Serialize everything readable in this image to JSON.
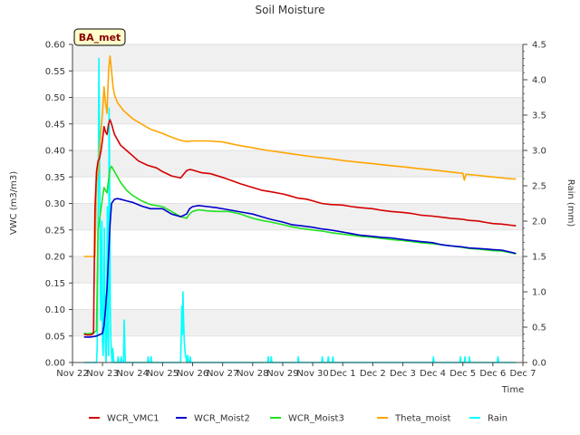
{
  "chart_data": {
    "type": "line",
    "title": "Soil Moisture",
    "badge": "BA_met",
    "xlabel": "Time",
    "ylabel": "VWC (m3/m3)",
    "ylabel_right": "Rain (mm)",
    "xlim": [
      0,
      15
    ],
    "ylim": [
      0,
      0.6
    ],
    "ylim_right": [
      0,
      4.5
    ],
    "x_tick_values": [
      0,
      1,
      2,
      3,
      4,
      5,
      6,
      7,
      8,
      9,
      10,
      11,
      12,
      13,
      14,
      15
    ],
    "x_tick_labels": [
      "Nov 22",
      "Nov 23",
      "Nov 24",
      "Nov 25",
      "Nov 26",
      "Nov 27",
      "Nov 28",
      "Nov 29",
      "Nov 30",
      "Dec 1",
      "Dec 2",
      "Dec 3",
      "Dec 4",
      "Dec 5",
      "Dec 6",
      "Dec 7"
    ],
    "y_ticks": [
      0.0,
      0.05,
      0.1,
      0.15,
      0.2,
      0.25,
      0.3,
      0.35,
      0.4,
      0.45,
      0.5,
      0.55,
      0.6
    ],
    "y_tick_labels": [
      "0.00",
      "0.05",
      "0.10",
      "0.15",
      "0.20",
      "0.25",
      "0.30",
      "0.35",
      "0.40",
      "0.45",
      "0.50",
      "0.55",
      "0.60"
    ],
    "y_ticks_right": [
      0.0,
      0.5,
      1.0,
      1.5,
      2.0,
      2.5,
      3.0,
      3.5,
      4.0,
      4.5
    ],
    "y_tick_labels_right": [
      "0.0",
      "0.5",
      "1.0",
      "1.5",
      "2.0",
      "2.5",
      "3.0",
      "3.5",
      "4.0",
      "4.5"
    ],
    "grid": "horizontal bands",
    "legend_position": "bottom",
    "series": [
      {
        "name": "WCR_VMC1",
        "color": "#d40000",
        "axis": "left",
        "x": [
          0.4,
          0.5,
          0.6,
          0.65,
          0.7,
          0.75,
          0.8,
          0.85,
          0.9,
          0.95,
          1.0,
          1.05,
          1.1,
          1.15,
          1.2,
          1.25,
          1.3,
          1.35,
          1.4,
          1.5,
          1.6,
          1.8,
          2.0,
          2.2,
          2.5,
          2.8,
          3.0,
          3.3,
          3.6,
          3.8,
          3.9,
          4.0,
          4.3,
          4.6,
          5.0,
          5.3,
          5.6,
          6.0,
          6.3,
          6.6,
          7.0,
          7.2,
          7.5,
          7.8,
          8.0,
          8.3,
          8.6,
          9.0,
          9.3,
          9.6,
          10.0,
          10.3,
          10.6,
          11.0,
          11.3,
          11.6,
          12.0,
          12.3,
          12.6,
          13.0,
          13.2,
          13.5,
          13.8,
          14.0,
          14.3,
          14.6,
          14.75
        ],
        "y": [
          0.053,
          0.052,
          0.052,
          0.053,
          0.055,
          0.29,
          0.36,
          0.38,
          0.385,
          0.4,
          0.42,
          0.445,
          0.435,
          0.43,
          0.45,
          0.458,
          0.45,
          0.44,
          0.43,
          0.42,
          0.41,
          0.4,
          0.39,
          0.38,
          0.372,
          0.367,
          0.36,
          0.352,
          0.348,
          0.362,
          0.364,
          0.363,
          0.358,
          0.356,
          0.349,
          0.343,
          0.337,
          0.33,
          0.325,
          0.322,
          0.318,
          0.315,
          0.31,
          0.308,
          0.305,
          0.3,
          0.298,
          0.297,
          0.294,
          0.292,
          0.29,
          0.287,
          0.285,
          0.283,
          0.281,
          0.278,
          0.276,
          0.274,
          0.272,
          0.27,
          0.268,
          0.267,
          0.264,
          0.262,
          0.261,
          0.259,
          0.258
        ]
      },
      {
        "name": "WCR_Moist2",
        "color": "#0000cc",
        "axis": "left",
        "x": [
          0.4,
          0.6,
          0.8,
          1.0,
          1.05,
          1.1,
          1.15,
          1.2,
          1.25,
          1.3,
          1.4,
          1.5,
          1.6,
          1.8,
          2.0,
          2.3,
          2.6,
          3.0,
          3.3,
          3.6,
          3.8,
          3.9,
          4.0,
          4.2,
          4.5,
          4.8,
          5.2,
          5.6,
          6.0,
          6.3,
          6.6,
          7.0,
          7.3,
          7.6,
          8.0,
          8.3,
          8.6,
          9.0,
          9.3,
          9.6,
          10.0,
          10.3,
          10.6,
          11.0,
          11.3,
          11.6,
          12.0,
          12.3,
          12.6,
          13.0,
          13.2,
          13.5,
          13.8,
          14.0,
          14.3,
          14.6,
          14.75
        ],
        "y": [
          0.048,
          0.048,
          0.05,
          0.055,
          0.07,
          0.1,
          0.14,
          0.2,
          0.26,
          0.3,
          0.308,
          0.309,
          0.308,
          0.305,
          0.302,
          0.295,
          0.29,
          0.29,
          0.28,
          0.275,
          0.28,
          0.29,
          0.294,
          0.296,
          0.294,
          0.292,
          0.288,
          0.284,
          0.28,
          0.275,
          0.27,
          0.265,
          0.26,
          0.258,
          0.255,
          0.252,
          0.25,
          0.246,
          0.243,
          0.24,
          0.238,
          0.236,
          0.235,
          0.232,
          0.23,
          0.228,
          0.226,
          0.222,
          0.22,
          0.218,
          0.216,
          0.215,
          0.214,
          0.213,
          0.212,
          0.208,
          0.206
        ]
      },
      {
        "name": "WCR_Moist3",
        "color": "#1ee31e",
        "axis": "left",
        "x": [
          0.4,
          0.5,
          0.6,
          0.7,
          0.8,
          0.85,
          0.9,
          0.95,
          1.0,
          1.05,
          1.1,
          1.15,
          1.2,
          1.25,
          1.3,
          1.4,
          1.5,
          1.6,
          1.8,
          2.0,
          2.3,
          2.6,
          3.0,
          3.3,
          3.6,
          3.8,
          3.9,
          4.0,
          4.2,
          4.5,
          4.8,
          5.2,
          5.6,
          6.0,
          6.3,
          6.6,
          7.0,
          7.3,
          7.6,
          8.0,
          8.3,
          8.6,
          9.0,
          9.3,
          9.6,
          10.0,
          10.3,
          10.6,
          11.0,
          11.3,
          11.6,
          12.0,
          12.3,
          12.6,
          13.0,
          13.2,
          13.5,
          13.8,
          14.0,
          14.3,
          14.6,
          14.75
        ],
        "y": [
          0.055,
          0.054,
          0.055,
          0.056,
          0.06,
          0.25,
          0.27,
          0.29,
          0.31,
          0.33,
          0.325,
          0.32,
          0.345,
          0.365,
          0.37,
          0.36,
          0.35,
          0.34,
          0.325,
          0.315,
          0.305,
          0.298,
          0.294,
          0.285,
          0.275,
          0.272,
          0.28,
          0.285,
          0.288,
          0.286,
          0.285,
          0.285,
          0.28,
          0.272,
          0.268,
          0.265,
          0.26,
          0.256,
          0.253,
          0.25,
          0.248,
          0.245,
          0.242,
          0.24,
          0.238,
          0.236,
          0.234,
          0.232,
          0.23,
          0.228,
          0.226,
          0.224,
          0.222,
          0.22,
          0.217,
          0.215,
          0.214,
          0.212,
          0.211,
          0.21,
          0.207,
          0.205
        ]
      },
      {
        "name": "Theta_moist",
        "color": "#ffa500",
        "axis": "left",
        "x": [
          0.4,
          0.6,
          0.75,
          0.8,
          0.85,
          0.9,
          0.95,
          1.0,
          1.05,
          1.1,
          1.15,
          1.2,
          1.25,
          1.3,
          1.35,
          1.4,
          1.5,
          1.7,
          2.0,
          2.3,
          2.6,
          3.0,
          3.3,
          3.6,
          3.8,
          4.0,
          4.5,
          5.0,
          5.5,
          6.0,
          6.5,
          7.0,
          7.5,
          8.0,
          8.5,
          9.0,
          9.5,
          10.0,
          10.5,
          11.0,
          11.5,
          12.0,
          12.5,
          13.0,
          13.05,
          13.1,
          13.5,
          14.0,
          14.5,
          14.75
        ],
        "y": [
          0.2,
          0.2,
          0.2,
          0.34,
          0.36,
          0.4,
          0.44,
          0.47,
          0.52,
          0.49,
          0.47,
          0.55,
          0.578,
          0.55,
          0.52,
          0.505,
          0.49,
          0.475,
          0.46,
          0.45,
          0.44,
          0.432,
          0.425,
          0.419,
          0.417,
          0.418,
          0.418,
          0.416,
          0.41,
          0.405,
          0.4,
          0.396,
          0.392,
          0.388,
          0.385,
          0.381,
          0.378,
          0.375,
          0.372,
          0.369,
          0.366,
          0.363,
          0.36,
          0.357,
          0.344,
          0.355,
          0.353,
          0.35,
          0.347,
          0.346
        ]
      },
      {
        "name": "Rain",
        "color": "#00ffff",
        "axis": "right",
        "x": [
          0.4,
          0.8,
          0.82,
          0.84,
          0.86,
          0.88,
          0.9,
          0.92,
          0.94,
          0.96,
          0.98,
          1.0,
          1.02,
          1.04,
          1.06,
          1.08,
          1.1,
          1.12,
          1.14,
          1.16,
          1.18,
          1.2,
          1.22,
          1.24,
          1.26,
          1.28,
          1.3,
          1.32,
          1.34,
          1.36,
          1.38,
          1.4,
          1.42,
          1.5,
          1.52,
          1.54,
          1.6,
          1.62,
          1.64,
          1.7,
          1.72,
          1.74,
          1.76,
          1.8,
          2.5,
          2.52,
          2.54,
          2.6,
          2.62,
          2.64,
          3.6,
          3.62,
          3.64,
          3.66,
          3.68,
          3.7,
          3.72,
          3.74,
          3.76,
          3.78,
          3.8,
          3.82,
          3.84,
          3.86,
          3.88,
          3.9,
          3.92,
          3.94,
          3.96,
          3.98,
          4.0,
          6.5,
          6.52,
          6.54,
          6.6,
          6.62,
          6.64,
          7.5,
          7.52,
          7.54,
          8.3,
          8.32,
          8.34,
          8.5,
          8.52,
          8.54,
          8.65,
          8.67,
          8.69,
          12.0,
          12.02,
          12.04,
          12.9,
          12.92,
          12.94,
          13.05,
          13.07,
          13.09,
          13.2,
          13.22,
          13.24,
          14.15,
          14.17,
          14.19,
          14.75
        ],
        "y": [
          0,
          0,
          0.2,
          1.0,
          2.7,
          4.3,
          3.0,
          1.8,
          0.6,
          1.2,
          2.0,
          0.3,
          0.1,
          0.5,
          1.9,
          0.8,
          0.2,
          0,
          0.4,
          2.2,
          0.6,
          0.1,
          3.6,
          2.4,
          0.8,
          0.3,
          0.1,
          0,
          0.2,
          0.1,
          0,
          0,
          0,
          0,
          0.08,
          0,
          0,
          0.08,
          0,
          0,
          0.6,
          0.25,
          0,
          0,
          0,
          0.08,
          0,
          0,
          0.08,
          0,
          0,
          0.3,
          0.8,
          0.4,
          1.0,
          0.6,
          0.3,
          0.2,
          0.1,
          0.08,
          0,
          0.08,
          0.1,
          0,
          0,
          0,
          0.08,
          0,
          0,
          0,
          0,
          0,
          0.08,
          0,
          0,
          0.08,
          0,
          0,
          0.08,
          0,
          0,
          0.08,
          0,
          0,
          0.08,
          0,
          0,
          0.08,
          0,
          0,
          0.08,
          0,
          0,
          0.08,
          0,
          0,
          0.08,
          0,
          0,
          0.08,
          0,
          0,
          0.08,
          0,
          0
        ]
      }
    ]
  }
}
